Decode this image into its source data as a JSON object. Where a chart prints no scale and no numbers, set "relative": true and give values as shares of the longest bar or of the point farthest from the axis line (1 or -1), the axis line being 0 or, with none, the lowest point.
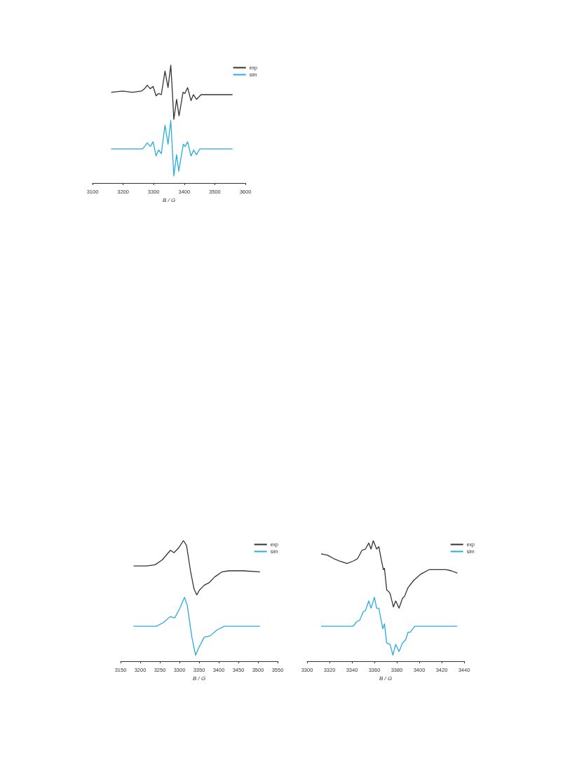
{
  "chart_data": [
    {
      "type": "line",
      "relative": true,
      "xlabel": "B / G",
      "xlim": [
        3100,
        3600
      ],
      "xticks": [
        3100,
        3200,
        3300,
        3400,
        3500,
        3600
      ],
      "legend": "top right",
      "series": [
        {
          "name": "exp",
          "color": "#333333",
          "x": [
            3161,
            3199,
            3230,
            3260,
            3270,
            3279,
            3289,
            3298,
            3308,
            3316,
            3325,
            3337,
            3347,
            3356,
            3361,
            3366,
            3375,
            3383,
            3396,
            3402,
            3411,
            3422,
            3430,
            3440,
            3455,
            3558
          ],
          "values": [
            0.77,
            0.78,
            0.77,
            0.78,
            0.8,
            0.83,
            0.8,
            0.82,
            0.74,
            0.76,
            0.75,
            0.95,
            0.81,
            1.0,
            0.78,
            0.54,
            0.71,
            0.57,
            0.77,
            0.76,
            0.81,
            0.7,
            0.75,
            0.71,
            0.75,
            0.75
          ]
        },
        {
          "name": "sim",
          "color": "#29abe2",
          "x": [
            3161,
            3264,
            3279,
            3289,
            3298,
            3308,
            3316,
            3325,
            3337,
            3347,
            3356,
            3361,
            3366,
            3375,
            3382,
            3397,
            3403,
            3411,
            3422,
            3431,
            3440,
            3451,
            3558
          ],
          "values": [
            0.29,
            0.29,
            0.34,
            0.31,
            0.35,
            0.23,
            0.28,
            0.25,
            0.49,
            0.33,
            0.53,
            0.29,
            0.06,
            0.24,
            0.1,
            0.33,
            0.31,
            0.35,
            0.23,
            0.28,
            0.24,
            0.29,
            0.29
          ]
        }
      ]
    },
    {
      "type": "line",
      "relative": true,
      "xlabel": "B / G",
      "xlim": [
        3150,
        3550
      ],
      "xticks": [
        3150,
        3200,
        3250,
        3300,
        3350,
        3400,
        3450,
        3500,
        3550
      ],
      "legend": "top right",
      "series": [
        {
          "name": "exp",
          "color": "#333333",
          "x": [
            3183,
            3217,
            3238,
            3256,
            3277,
            3286,
            3298,
            3310,
            3318,
            3328,
            3337,
            3344,
            3351,
            3363,
            3375,
            3390,
            3408,
            3426,
            3462,
            3505
          ],
          "values": [
            0.79,
            0.79,
            0.8,
            0.84,
            0.92,
            0.9,
            0.94,
            1.0,
            0.96,
            0.75,
            0.6,
            0.55,
            0.59,
            0.63,
            0.65,
            0.7,
            0.74,
            0.75,
            0.75,
            0.74
          ]
        },
        {
          "name": "sim",
          "color": "#29abe2",
          "x": [
            3183,
            3241,
            3259,
            3276,
            3288,
            3301,
            3313,
            3320,
            3331,
            3341,
            3349,
            3363,
            3378,
            3396,
            3414,
            3505
          ],
          "values": [
            0.29,
            0.29,
            0.32,
            0.37,
            0.36,
            0.44,
            0.53,
            0.46,
            0.21,
            0.05,
            0.11,
            0.2,
            0.21,
            0.26,
            0.29,
            0.29
          ]
        }
      ]
    },
    {
      "type": "line",
      "relative": true,
      "xlabel": "B / G",
      "xlim": [
        3300,
        3440
      ],
      "xticks": [
        3300,
        3320,
        3340,
        3360,
        3380,
        3400,
        3420,
        3440
      ],
      "legend": "top right",
      "series": [
        {
          "name": "exp",
          "color": "#333333",
          "x": [
            3312.5,
            3318,
            3324,
            3329,
            3335.5,
            3341,
            3345,
            3349,
            3352,
            3355,
            3357,
            3359,
            3362,
            3364,
            3366,
            3368,
            3369,
            3371,
            3372.5,
            3374,
            3377,
            3379,
            3382,
            3385,
            3387,
            3390,
            3395,
            3401,
            3409,
            3416,
            3424,
            3428.5,
            3434
          ],
          "values": [
            0.89,
            0.88,
            0.85,
            0.83,
            0.81,
            0.83,
            0.85,
            0.92,
            0.93,
            0.98,
            0.93,
            1.0,
            0.93,
            0.95,
            0.85,
            0.76,
            0.77,
            0.59,
            0.58,
            0.56,
            0.45,
            0.5,
            0.44,
            0.52,
            0.54,
            0.61,
            0.67,
            0.72,
            0.76,
            0.76,
            0.76,
            0.75,
            0.73
          ]
        },
        {
          "name": "sim",
          "color": "#29abe2",
          "x": [
            3312.5,
            3341,
            3344.5,
            3347,
            3350,
            3352,
            3355,
            3357,
            3360,
            3362,
            3364,
            3367.5,
            3369,
            3371,
            3374,
            3376.5,
            3379,
            3382,
            3385,
            3388,
            3390,
            3392,
            3396,
            3434
          ],
          "values": [
            0.29,
            0.29,
            0.33,
            0.34,
            0.41,
            0.42,
            0.5,
            0.44,
            0.53,
            0.44,
            0.44,
            0.27,
            0.31,
            0.15,
            0.14,
            0.05,
            0.14,
            0.08,
            0.15,
            0.18,
            0.24,
            0.24,
            0.29,
            0.29
          ]
        }
      ]
    }
  ]
}
